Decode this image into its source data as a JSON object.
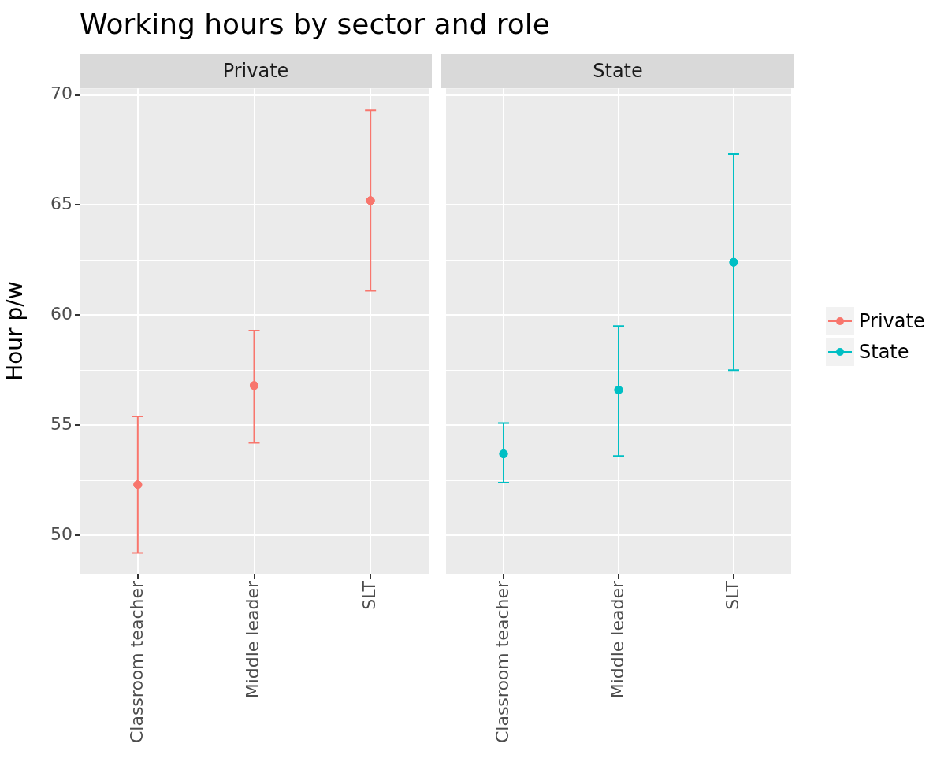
{
  "chart_data": [
    {
      "type": "scatter",
      "title": "Working hours by sector and role",
      "subtitle": "Private",
      "ylabel": "Hour p/w",
      "categories": [
        "Classroom teacher",
        "Middle leader",
        "SLT"
      ],
      "series": [
        {
          "name": "Private",
          "color": "#f8766d",
          "values": [
            52.3,
            56.8,
            65.2
          ],
          "errors": [
            [
              49.2,
              55.4
            ],
            [
              54.2,
              59.3
            ],
            [
              61.1,
              69.3
            ]
          ]
        }
      ],
      "ylim": [
        48.25,
        70.3
      ],
      "yticks": [
        50,
        {
          "value": 52.5,
          "label": null
        },
        55,
        {
          "value": 57.5,
          "label": null
        },
        60,
        {
          "value": 62.5,
          "label": null
        },
        65,
        {
          "value": 67.5,
          "label": null
        },
        70
      ],
      "grid": true,
      "marker": "circle"
    },
    {
      "type": "scatter",
      "subtitle": "State",
      "categories": [
        "Classroom teacher",
        "Middle leader",
        "SLT"
      ],
      "series": [
        {
          "name": "State",
          "color": "#00bfc4",
          "values": [
            53.7,
            56.6,
            62.4
          ],
          "errors": [
            [
              52.4,
              55.1
            ],
            [
              53.6,
              59.5
            ],
            [
              57.5,
              67.3
            ]
          ]
        }
      ],
      "ylim": [
        48.25,
        70.3
      ],
      "yticks": [
        50,
        {
          "value": 52.5,
          "label": null
        },
        55,
        {
          "value": 57.5,
          "label": null
        },
        60,
        {
          "value": 62.5,
          "label": null
        },
        65,
        {
          "value": 67.5,
          "label": null
        },
        70
      ],
      "grid": true,
      "marker": "circle",
      "tick_labels": "x",
      "legend": "right"
    }
  ]
}
